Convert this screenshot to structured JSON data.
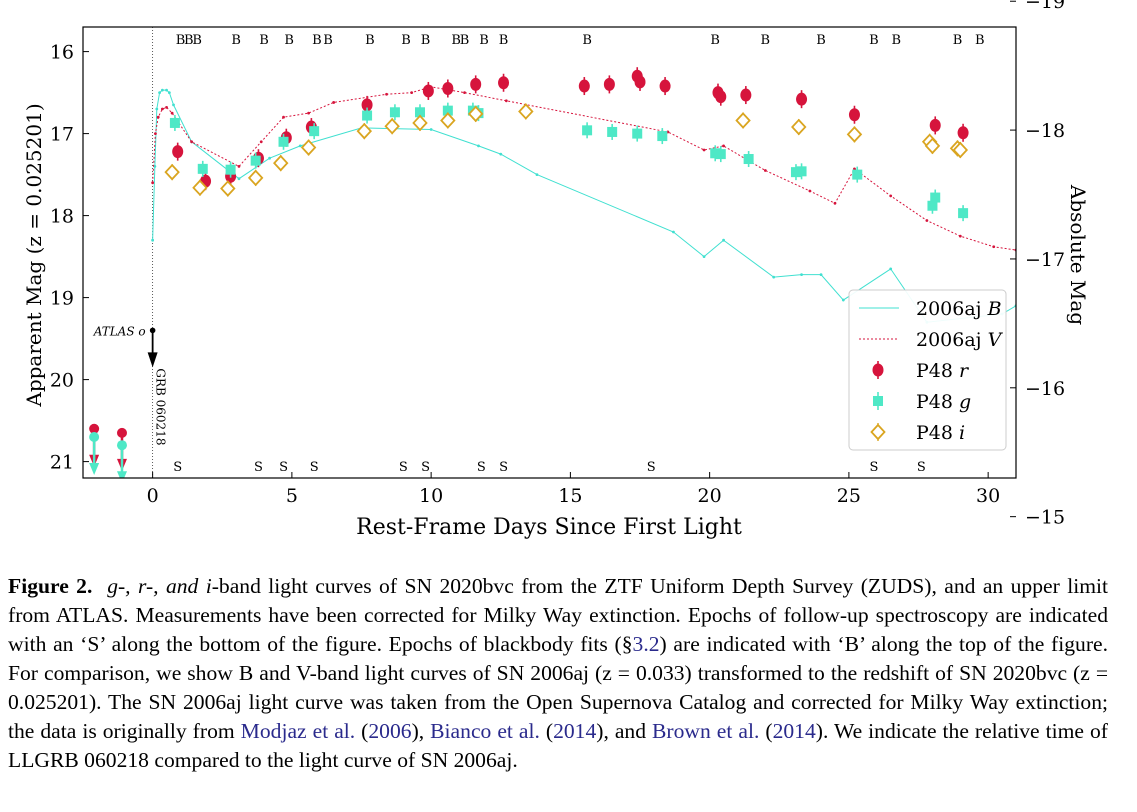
{
  "chart_data": {
    "type": "scatter",
    "xlabel": "Rest-Frame Days Since First Light",
    "ylabel": "Apparent Mag (z = 0.025201)",
    "ylabel_right": "Absolute Mag",
    "xlim": [
      -2.5,
      31.0
    ],
    "ylim": [
      21.2,
      15.7
    ],
    "y2lim": [
      -15.3,
      -18.8
    ],
    "xticks": [
      0,
      5,
      10,
      15,
      20,
      25,
      30
    ],
    "yticks": [
      16,
      17,
      18,
      19,
      20,
      21
    ],
    "y2ticks": [
      -19,
      -18,
      -17,
      -16,
      -15
    ],
    "xtick_labels": [
      "0",
      "5",
      "10",
      "15",
      "20",
      "25",
      "30"
    ],
    "ytick_labels": [
      "16",
      "17",
      "18",
      "19",
      "20",
      "21"
    ],
    "y2tick_labels": [
      "−19",
      "−18",
      "−17",
      "−16",
      "−15"
    ],
    "grid": false,
    "legend_position": "lower-right",
    "blackbody_epochs": [
      1.0,
      1.3,
      1.6,
      3.0,
      4.0,
      4.9,
      5.9,
      6.3,
      7.8,
      9.1,
      9.8,
      10.9,
      11.2,
      11.9,
      12.6,
      15.6,
      20.2,
      22.0,
      24.0,
      25.9,
      26.7,
      28.9,
      29.7
    ],
    "blackbody_marker": "B",
    "spectra_epochs": [
      0.9,
      3.8,
      4.7,
      5.8,
      9.0,
      9.8,
      11.8,
      12.6,
      17.9,
      25.9,
      27.6
    ],
    "spectra_marker": "S",
    "atlas": {
      "label": "ATLAS o",
      "x": 0.0,
      "y": 19.4
    },
    "grb": {
      "label": "GRB 060218",
      "x": 0.0
    },
    "series": [
      {
        "name": "2006aj B",
        "kind": "line",
        "color": "#40e0d0",
        "x": [
          0.0,
          0.08,
          0.15,
          0.25,
          0.35,
          0.5,
          0.6,
          0.75,
          1.4,
          3.1,
          4.2,
          5.3,
          7.5,
          10.0,
          11.7,
          12.5,
          13.8,
          18.7,
          19.8,
          20.5,
          22.3,
          23.3,
          24.0,
          24.8,
          26.5,
          27.8,
          30.5,
          31.0
        ],
        "y": [
          18.3,
          17.4,
          16.7,
          16.5,
          16.47,
          16.47,
          16.5,
          16.65,
          17.1,
          17.55,
          17.3,
          17.15,
          16.93,
          16.95,
          17.15,
          17.25,
          17.5,
          18.2,
          18.5,
          18.3,
          18.75,
          18.72,
          18.72,
          19.03,
          18.65,
          19.3,
          19.2,
          19.1
        ]
      },
      {
        "name": "2006aj V",
        "kind": "line",
        "color": "#d6143c",
        "x": [
          0.0,
          0.1,
          0.2,
          0.35,
          0.5,
          0.7,
          1.4,
          3.1,
          3.9,
          4.7,
          5.6,
          6.5,
          8.4,
          9.3,
          10.0,
          11.2,
          12.7,
          18.5,
          19.8,
          20.5,
          22.0,
          23.6,
          24.5,
          25.2,
          26.5,
          27.8,
          29.0,
          30.2,
          31.0
        ],
        "y": [
          17.6,
          17.0,
          16.8,
          16.7,
          16.68,
          16.75,
          17.1,
          17.4,
          17.1,
          16.8,
          16.75,
          16.62,
          16.52,
          16.5,
          16.43,
          16.5,
          16.6,
          16.98,
          17.2,
          17.15,
          17.45,
          17.7,
          17.85,
          17.43,
          17.76,
          18.06,
          18.25,
          18.38,
          18.42
        ]
      },
      {
        "name": "P48 r",
        "kind": "points",
        "color": "#d6143c",
        "x": [
          0.9,
          1.9,
          2.8,
          3.8,
          4.8,
          5.7,
          7.7,
          9.9,
          10.6,
          11.6,
          12.6,
          15.5,
          16.4,
          17.4,
          17.5,
          18.4,
          20.3,
          20.4,
          21.3,
          23.3,
          25.2,
          28.1,
          29.1
        ],
        "y": [
          17.22,
          17.58,
          17.52,
          17.3,
          17.05,
          16.92,
          16.65,
          16.48,
          16.45,
          16.4,
          16.38,
          16.42,
          16.4,
          16.3,
          16.37,
          16.42,
          16.5,
          16.55,
          16.53,
          16.58,
          16.77,
          16.9,
          16.99
        ]
      },
      {
        "name": "P48 g",
        "kind": "points",
        "color": "#4ee8c6",
        "x": [
          0.8,
          1.8,
          2.8,
          3.7,
          4.7,
          5.8,
          7.7,
          8.7,
          9.6,
          10.6,
          11.5,
          11.7,
          15.6,
          16.5,
          17.4,
          18.3,
          20.2,
          20.4,
          21.4,
          23.1,
          23.3,
          25.3,
          28.0,
          28.1,
          29.1
        ],
        "y": [
          16.87,
          17.43,
          17.44,
          17.33,
          17.1,
          16.97,
          16.78,
          16.74,
          16.74,
          16.72,
          16.72,
          16.75,
          16.96,
          16.98,
          17.0,
          17.03,
          17.24,
          17.25,
          17.31,
          17.47,
          17.46,
          17.5,
          17.88,
          17.78,
          17.97
        ]
      },
      {
        "name": "P48 i",
        "kind": "points",
        "color": "#daa520",
        "x": [
          0.7,
          1.7,
          2.7,
          3.7,
          4.6,
          5.6,
          7.6,
          8.6,
          9.6,
          10.6,
          11.6,
          13.4,
          21.2,
          23.2,
          25.2,
          27.9,
          28.0,
          28.9,
          29.0
        ],
        "y": [
          17.47,
          17.66,
          17.67,
          17.54,
          17.36,
          17.17,
          16.97,
          16.91,
          16.87,
          16.84,
          16.76,
          16.73,
          16.84,
          16.92,
          17.01,
          17.1,
          17.15,
          17.18,
          17.2
        ]
      },
      {
        "name": "",
        "kind": "upper-limit",
        "color": "#d6143c",
        "x": [
          -2.1,
          -1.1
        ],
        "y": [
          20.6,
          20.65
        ]
      },
      {
        "name": "",
        "kind": "upper-limit",
        "color": "#4ee8c6",
        "x": [
          -2.1,
          -1.1
        ],
        "y": [
          20.7,
          20.8
        ]
      }
    ]
  },
  "figure": {
    "x_axis_label": "Rest-Frame Days Since First Light",
    "y_axis_label_left": "Apparent Mag (z = 0.025201)",
    "y_axis_label_right": "Absolute Mag",
    "legend": [
      {
        "label": "2006aj",
        "band": "B"
      },
      {
        "label": "2006aj",
        "band": "V"
      },
      {
        "label": "P48",
        "band": "r"
      },
      {
        "label": "P48",
        "band": "g"
      },
      {
        "label": "P48",
        "band": "i"
      }
    ]
  },
  "caption": {
    "label": "Figure 2.",
    "bands_prefix": "g-, r-, and i",
    "text_1": "-band light curves of SN 2020bvc from the ZTF Uniform Depth Survey (ZUDS), and an upper limit from ATLAS. Measurements have been corrected for Milky Way extinction. Epochs of follow-up spectroscopy are indicated with an ‘S’ along the bottom of the figure. Epochs of blackbody fits (§",
    "section_ref": "3.2",
    "text_2": ") are indicated with ‘B’ along the top of the figure. For comparison, we show B and V-band light curves of SN 2006aj (z = 0.033) transformed to the redshift of SN 2020bvc (z = 0.025201). The SN 2006aj light curve was taken from the Open Supernova Catalog and corrected for Milky Way extinction; the data is originally from ",
    "cite_1_author": "Modjaz et al.",
    "cite_1_year": "2006",
    "cite_2_author": "Bianco et al.",
    "cite_2_year": "2014",
    "cite_3_author": "Brown et al.",
    "cite_3_year": "2014",
    "text_3": ". We indicate the relative time of LLGRB 060218 compared to the light curve of SN 2006aj."
  }
}
